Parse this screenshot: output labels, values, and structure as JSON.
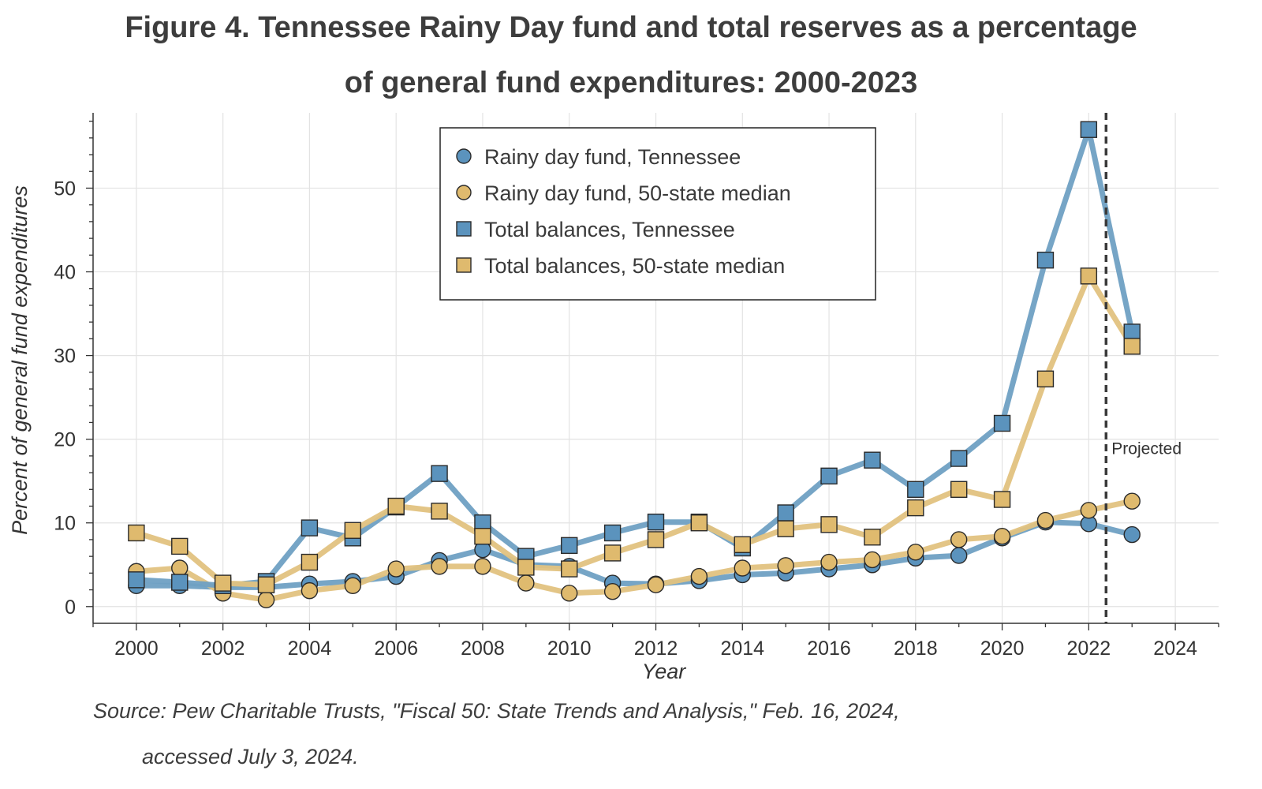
{
  "figure": {
    "title_line1": "Figure 4. Tennessee Rainy Day fund and total reserves as a percentage",
    "title_line2": "of general fund expenditures: 2000-2023",
    "source_line1": "Source: Pew Charitable Trusts, \"Fiscal 50: State Trends and Analysis,\" Feb. 16, 2024,",
    "source_line2": "accessed July 3, 2024."
  },
  "colors": {
    "tennessee": "#6fa0c3",
    "tennessee_marker": "#5b93bd",
    "median": "#e2c27f",
    "median_marker": "#dfba6e",
    "grid": "#e3e3e3",
    "axis": "#333333"
  },
  "chart_data": {
    "type": "line",
    "title": "Figure 4. Tennessee Rainy Day fund and total reserves as a percentage of general fund expenditures: 2000-2023",
    "xlabel": "Year",
    "ylabel": "Percent of general fund expenditures",
    "xlim": [
      1999,
      2025
    ],
    "ylim": [
      -2,
      59
    ],
    "xticks": [
      2000,
      2002,
      2004,
      2006,
      2008,
      2010,
      2012,
      2014,
      2016,
      2018,
      2020,
      2022,
      2024
    ],
    "yticks": [
      0,
      10,
      20,
      30,
      40,
      50
    ],
    "grid": true,
    "legend_position": "top-center",
    "x": [
      2000,
      2001,
      2002,
      2003,
      2004,
      2005,
      2006,
      2007,
      2008,
      2009,
      2010,
      2011,
      2012,
      2013,
      2014,
      2015,
      2016,
      2017,
      2018,
      2019,
      2020,
      2021,
      2022,
      2023
    ],
    "series": [
      {
        "name": "Rainy day fund, Tennessee",
        "marker": "circle",
        "color_key": "tennessee",
        "values": [
          2.5,
          2.5,
          2.3,
          2.3,
          2.7,
          3.0,
          3.6,
          5.5,
          6.8,
          5.0,
          4.8,
          2.8,
          2.7,
          3.1,
          3.8,
          4.0,
          4.5,
          5.0,
          5.8,
          6.1,
          8.2,
          10.1,
          9.9,
          8.6
        ]
      },
      {
        "name": "Rainy day fund, 50-state median",
        "marker": "circle",
        "color_key": "median",
        "values": [
          4.2,
          4.6,
          1.6,
          0.8,
          1.9,
          2.5,
          4.5,
          4.8,
          4.8,
          2.8,
          1.6,
          1.8,
          2.6,
          3.6,
          4.6,
          4.9,
          5.3,
          5.6,
          6.5,
          8.0,
          8.4,
          10.3,
          11.5,
          12.6
        ]
      },
      {
        "name": "Total balances, Tennessee",
        "marker": "square",
        "color_key": "tennessee",
        "values": [
          3.2,
          2.9,
          2.5,
          3.0,
          9.4,
          8.2,
          11.9,
          15.9,
          10.0,
          6.0,
          7.3,
          8.8,
          10.1,
          10.1,
          7.0,
          11.2,
          15.6,
          17.5,
          14.0,
          17.7,
          21.9,
          41.4,
          57.0,
          32.8
        ]
      },
      {
        "name": "Total balances, 50-state median",
        "marker": "square",
        "color_key": "median",
        "values": [
          8.8,
          7.2,
          2.8,
          2.6,
          5.3,
          9.1,
          12.0,
          11.4,
          8.4,
          4.7,
          4.5,
          6.4,
          8.0,
          10.0,
          7.4,
          9.3,
          9.8,
          8.3,
          11.8,
          14.0,
          12.8,
          27.2,
          39.5,
          31.1
        ]
      }
    ],
    "annotations": [
      {
        "type": "vline",
        "x": 2022.4,
        "style": "dashed",
        "label": "Projected"
      }
    ]
  }
}
